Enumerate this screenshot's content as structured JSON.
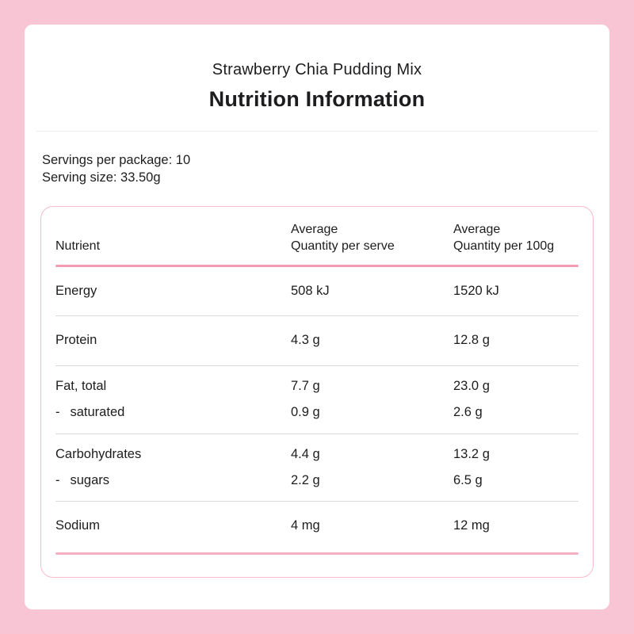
{
  "title_block": {
    "product_name": "Strawberry Chia Pudding Mix",
    "panel_title": "Nutrition Information"
  },
  "serving_info": {
    "servings_per_package": "Servings per package: 10",
    "serving_size": "Serving size: 33.50g"
  },
  "table": {
    "headers": {
      "nutrient": "Nutrient",
      "per_serve": [
        "Average",
        "Quantity per serve"
      ],
      "per_100g": [
        "Average",
        "Quantity per 100g"
      ]
    },
    "rows": [
      {
        "prefix": "",
        "nutrient": "Energy",
        "per_serve": "508 kJ",
        "per_100g": "1520 kJ"
      },
      {
        "prefix": "",
        "nutrient": "Protein",
        "per_serve": "4.3 g",
        "per_100g": "12.8 g"
      },
      {
        "prefix": "",
        "nutrient": "Fat, total",
        "per_serve": "7.7 g",
        "per_100g": "23.0 g"
      },
      {
        "prefix": "-",
        "nutrient": "saturated",
        "per_serve": "0.9 g",
        "per_100g": "2.6 g"
      },
      {
        "prefix": "",
        "nutrient": "Carbohydrates",
        "per_serve": "4.4 g",
        "per_100g": "13.2 g"
      },
      {
        "prefix": "-",
        "nutrient": "sugars",
        "per_serve": "2.2 g",
        "per_100g": "6.5 g"
      },
      {
        "prefix": "",
        "nutrient": "Sodium",
        "per_serve": "4 mg",
        "per_100g": "12 mg"
      }
    ]
  },
  "colors": {
    "page_background": "#f8c5d5",
    "card_background": "#ffffff",
    "accent_line": "#f29cb3",
    "panel_border": "#f7bcca",
    "separator": "#d9d9d9",
    "text": "#1d1d1f"
  }
}
